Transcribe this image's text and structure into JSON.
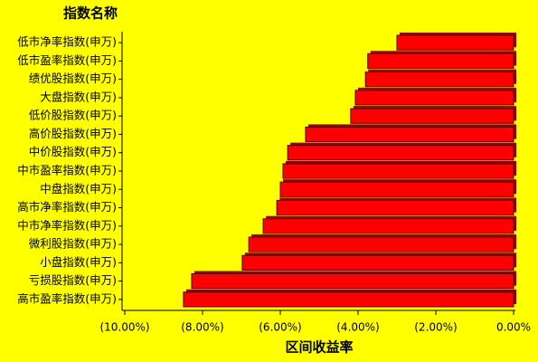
{
  "chart_data": {
    "type": "bar",
    "orientation": "horizontal",
    "y_title": "指数名称",
    "x_title": "区间收益率",
    "categories": [
      "低市净率指数(申万)",
      "低市盈率指数(申万)",
      "绩优股指数(申万)",
      "大盘指数(申万)",
      "低价股指数(申万)",
      "高价股指数(申万)",
      "中价股指数(申万)",
      "中市盈率指数(申万)",
      "中盘指数(申万)",
      "高市净率指数(申万)",
      "中市净率指数(申万)",
      "微利股指数(申万)",
      "小盘指数(申万)",
      "亏损股指数(申万)",
      "高市盈率指数(申万)"
    ],
    "values": [
      -3.0,
      -3.75,
      -3.81,
      -4.07,
      -4.19,
      -5.35,
      -5.81,
      -5.93,
      -6.0,
      -6.09,
      -6.44,
      -6.81,
      -6.98,
      -8.28,
      -8.49
    ],
    "color": "#ff0000",
    "xlim": [
      -10,
      0
    ],
    "xticks": [
      {
        "value": -10,
        "label": "(10.00%)"
      },
      {
        "value": -8,
        "label": "(8.00%)"
      },
      {
        "value": -6,
        "label": "(6.00%)"
      },
      {
        "value": -4,
        "label": "(4.00%)"
      },
      {
        "value": -2,
        "label": "(2.00%)"
      },
      {
        "value": 0,
        "label": "0.00%"
      }
    ]
  }
}
